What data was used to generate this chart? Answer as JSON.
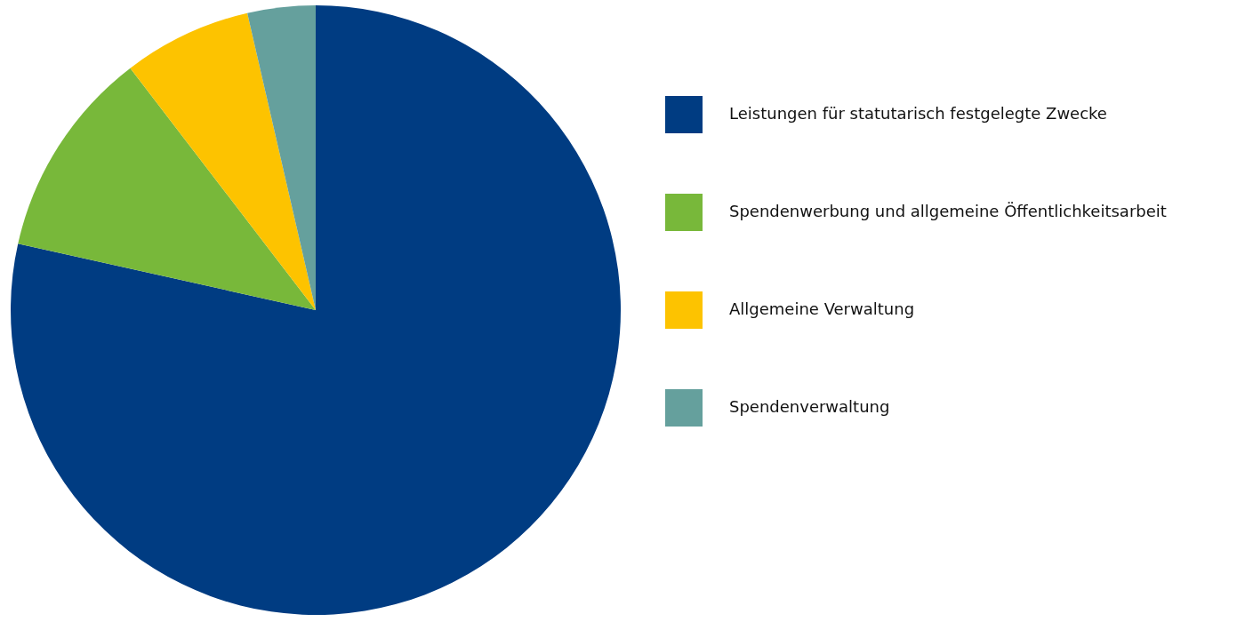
{
  "chart_data": {
    "type": "pie",
    "categories": [
      "Leistungen für statutarisch festgelegte Zwecke",
      "Spendenwerbung und allgemeine Öffentlichkeitsarbeit",
      "Allgemeine Verwaltung",
      "Spendenverwaltung"
    ],
    "values": [
      78.5,
      11.1,
      6.8,
      3.6
    ],
    "colors": [
      "#003c82",
      "#78b83a",
      "#fdc300",
      "#65a09d"
    ],
    "legend": "right"
  }
}
